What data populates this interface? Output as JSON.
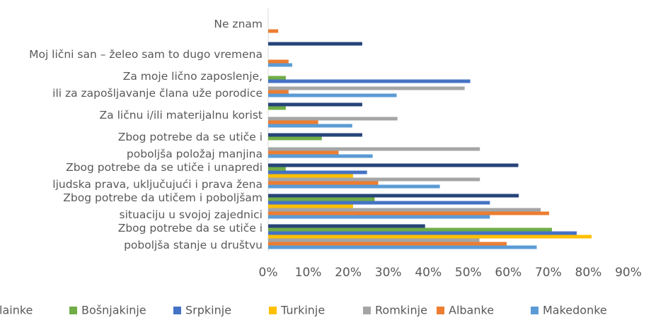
{
  "chart_data": {
    "type": "hbar",
    "categories": [
      "Ne znam",
      "Moj lični san – želeo sam to dugo vremena",
      "Za moje lično zaposlenje,\nili za zapošljavanje člana uže porodice",
      "Za ličnu i/ili materijalnu korist",
      "Zbog potrebe da se utiče i\npoboljša položaj manjina",
      "Zbog potrebe da se utiče i unapredi\nljudska prava, uključujući i prava žena",
      "Zbog potrebe da utičem i poboljšam\nsituaciju u svojoj zajednici",
      "Zbog potrebe da se utiče i\npoboljša stanje u društvu"
    ],
    "series": [
      {
        "name": "lainke",
        "color": "#264478",
        "values": [
          null,
          23.5,
          null,
          23.5,
          23.5,
          62.5,
          62.6,
          39.2
        ]
      },
      {
        "name": "Bošnjakinje",
        "color": "#70ad47",
        "values": [
          null,
          null,
          4.4,
          4.4,
          13.4,
          4.4,
          26.6,
          70.9
        ]
      },
      {
        "name": "Srpkinje",
        "color": "#4472c4",
        "values": [
          null,
          null,
          50.5,
          null,
          null,
          24.7,
          55.4,
          77.1
        ]
      },
      {
        "name": "Turkinje",
        "color": "#ffc000",
        "values": [
          null,
          null,
          null,
          null,
          null,
          21.2,
          21.2,
          80.8
        ]
      },
      {
        "name": "Romkinje",
        "color": "#a5a5a5",
        "values": [
          null,
          null,
          49.1,
          32.3,
          52.9,
          52.9,
          68.1,
          52.8
        ]
      },
      {
        "name": "Albanke",
        "color": "#ed7d31",
        "values": [
          2.5,
          5.1,
          5.1,
          12.5,
          17.6,
          27.5,
          70.2,
          59.6
        ]
      },
      {
        "name": "Makedonke",
        "color": "#5b9bd5",
        "values": [
          null,
          6.0,
          32.1,
          21.0,
          26.1,
          42.9,
          55.4,
          67.1
        ]
      }
    ],
    "xlim": [
      0,
      90
    ],
    "xticks": [
      {
        "value": 0,
        "label": "0%"
      },
      {
        "value": 10,
        "label": "10%"
      },
      {
        "value": 20,
        "label": "20%"
      },
      {
        "value": 30,
        "label": "30%"
      },
      {
        "value": 40,
        "label": "40%"
      },
      {
        "value": 50,
        "label": "50%"
      },
      {
        "value": 60,
        "label": "60%"
      },
      {
        "value": 70,
        "label": "70%"
      },
      {
        "value": 80,
        "label": "80%"
      },
      {
        "value": 90,
        "label": "90%"
      }
    ],
    "grid": false,
    "legend": "bottom"
  }
}
